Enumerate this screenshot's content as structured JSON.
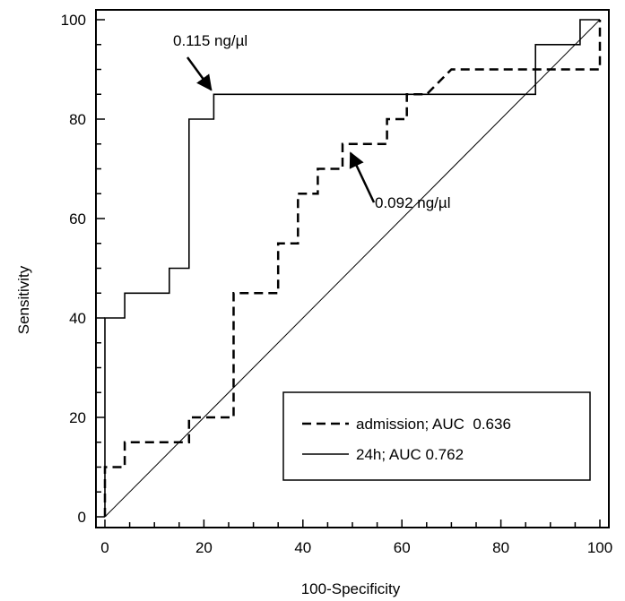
{
  "chart_data": {
    "type": "line",
    "title": "",
    "xlabel": "100-Specificity",
    "ylabel": "Sensitivity",
    "xlim": [
      0,
      100
    ],
    "ylim": [
      0,
      100
    ],
    "x_ticks": [
      0,
      20,
      40,
      60,
      80,
      100
    ],
    "y_ticks": [
      0,
      20,
      40,
      60,
      80,
      100
    ],
    "series": [
      {
        "name": "admission; AUC  0.636",
        "style": "dashed",
        "color": "#000000",
        "points": [
          [
            0,
            0
          ],
          [
            0,
            10
          ],
          [
            4,
            10
          ],
          [
            4,
            15
          ],
          [
            17,
            15
          ],
          [
            17,
            20
          ],
          [
            26,
            20
          ],
          [
            26,
            45
          ],
          [
            35,
            45
          ],
          [
            35,
            55
          ],
          [
            39,
            55
          ],
          [
            39,
            65
          ],
          [
            43,
            65
          ],
          [
            43,
            70
          ],
          [
            48,
            70
          ],
          [
            48,
            75
          ],
          [
            57,
            75
          ],
          [
            57,
            80
          ],
          [
            61,
            80
          ],
          [
            61,
            85
          ],
          [
            65,
            85
          ],
          [
            70,
            90
          ],
          [
            100,
            90
          ],
          [
            100,
            100
          ]
        ]
      },
      {
        "name": "24h; AUC 0.762",
        "style": "solid",
        "color": "#000000",
        "points": [
          [
            0,
            0
          ],
          [
            0,
            40
          ],
          [
            4,
            40
          ],
          [
            4,
            45
          ],
          [
            13,
            45
          ],
          [
            13,
            50
          ],
          [
            17,
            50
          ],
          [
            17,
            80
          ],
          [
            22,
            80
          ],
          [
            22,
            85
          ],
          [
            87,
            85
          ],
          [
            87,
            95
          ],
          [
            96,
            95
          ],
          [
            96,
            100
          ],
          [
            100,
            100
          ]
        ]
      }
    ],
    "reference_line": [
      [
        0,
        0
      ],
      [
        100,
        100
      ]
    ],
    "annotations": [
      {
        "text": "0.115 ng/µl",
        "points_to": [
          22,
          85
        ]
      },
      {
        "text": "0.092 ng/µl",
        "points_to": [
          50,
          73
        ]
      }
    ],
    "legend_position": "bottom-right",
    "grid": false
  }
}
